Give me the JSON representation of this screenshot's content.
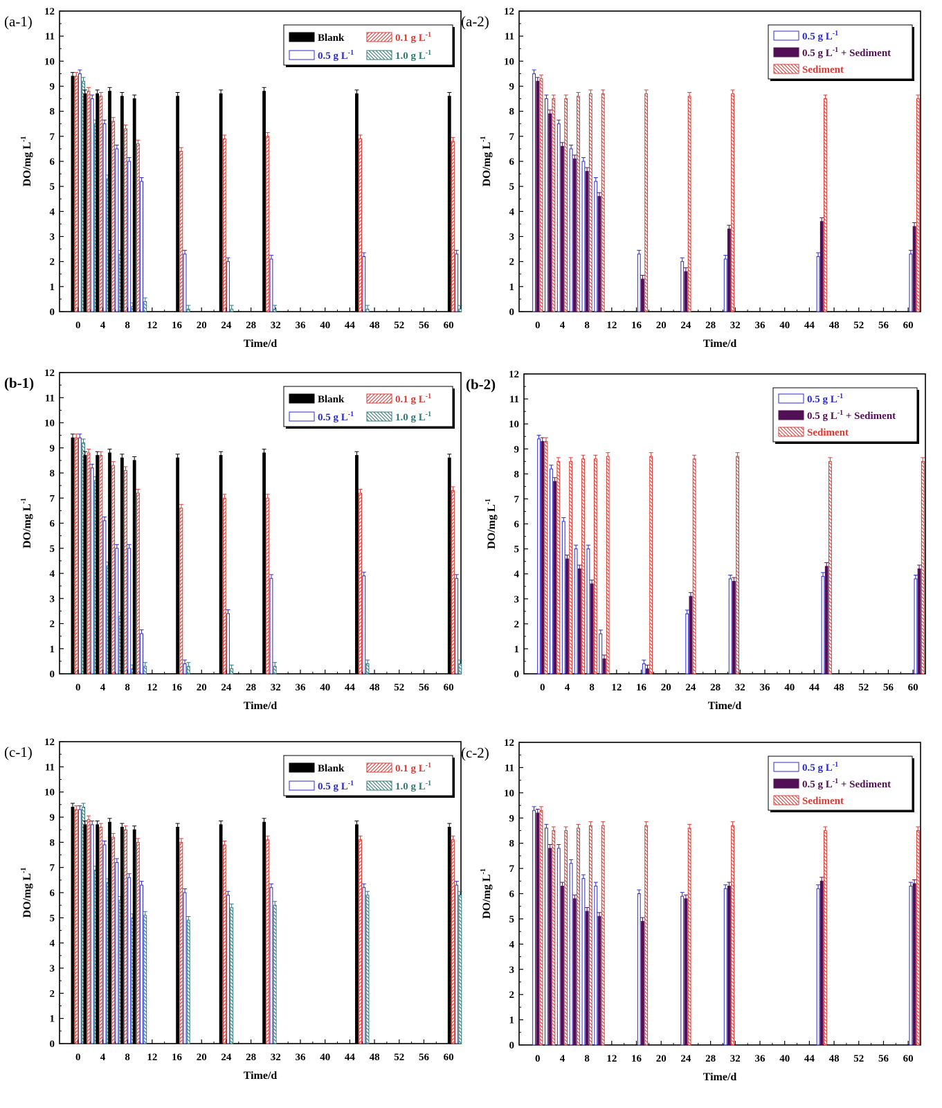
{
  "colors": {
    "blank": "#000000",
    "c01": "#d93a34",
    "c05": "#2a2ad4",
    "c10": "#2f7a76",
    "sed_combo": "#520f55",
    "sediment": "#d93a34"
  },
  "chart_data": [
    {
      "id": "a-1",
      "panel_label": "(a-1)",
      "type": "bar",
      "xlabel": "Time/d",
      "ylabel": "DO/mg L",
      "ylabel_sup": "-1",
      "ylim": [
        0,
        12
      ],
      "xlim": [
        -3,
        62
      ],
      "yticks": [
        "0",
        "1",
        "2",
        "3",
        "4",
        "5",
        "6",
        "7",
        "8",
        "9",
        "10",
        "11",
        "12"
      ],
      "xticks": [
        "0",
        "4",
        "8",
        "12",
        "16",
        "20",
        "24",
        "28",
        "32",
        "36",
        "40",
        "44",
        "48",
        "52",
        "56",
        "60"
      ],
      "legend_position": "top-right",
      "groups": [
        {
          "day": 0,
          "values": [
            9.4,
            9.4,
            9.5,
            9.2
          ]
        },
        {
          "day": 2,
          "values": [
            8.7,
            8.8,
            8.5,
            7.5
          ]
        },
        {
          "day": 4,
          "values": [
            8.7,
            8.6,
            7.5,
            5.3
          ]
        },
        {
          "day": 6,
          "values": [
            8.8,
            7.6,
            6.5,
            2.3
          ]
        },
        {
          "day": 8,
          "values": [
            8.6,
            7.3,
            6.0,
            0.2
          ]
        },
        {
          "day": 10,
          "values": [
            8.5,
            6.7,
            5.2,
            0.4
          ]
        },
        {
          "day": 17,
          "values": [
            8.6,
            6.4,
            2.3,
            0.1
          ]
        },
        {
          "day": 24,
          "values": [
            8.7,
            6.9,
            2.0,
            0.1
          ]
        },
        {
          "day": 31,
          "values": [
            8.8,
            7.0,
            2.1,
            0.1
          ]
        },
        {
          "day": 46,
          "values": [
            8.7,
            6.9,
            2.2,
            0.1
          ]
        },
        {
          "day": 61,
          "values": [
            8.6,
            6.8,
            2.3,
            0.1
          ]
        }
      ],
      "series": [
        {
          "name": "Blank",
          "unit": "",
          "color_key": "blank",
          "pattern": "solid"
        },
        {
          "name": "0.1 g L",
          "unit": "-1",
          "color_key": "c01",
          "pattern": "hatch-right"
        },
        {
          "name": "0.5 g L",
          "unit": "-1",
          "color_key": "c05",
          "pattern": "open"
        },
        {
          "name": "1.0 g L",
          "unit": "-1",
          "color_key": "c10",
          "pattern": "hatch-left"
        }
      ]
    },
    {
      "id": "a-2",
      "panel_label": "(a-2)",
      "type": "bar",
      "xlabel": "Time/d",
      "ylabel": "DO/mg L",
      "ylabel_sup": "-1",
      "ylim": [
        0,
        12
      ],
      "xlim": [
        -3,
        62
      ],
      "yticks": [
        "0",
        "1",
        "2",
        "3",
        "4",
        "5",
        "6",
        "7",
        "8",
        "9",
        "10",
        "11",
        "12"
      ],
      "xticks": [
        "0",
        "4",
        "8",
        "12",
        "16",
        "20",
        "24",
        "28",
        "32",
        "36",
        "40",
        "44",
        "48",
        "52",
        "56",
        "60"
      ],
      "legend_position": "top-right",
      "groups": [
        {
          "day": 0,
          "values": [
            9.5,
            9.2,
            9.3
          ]
        },
        {
          "day": 2,
          "values": [
            8.5,
            7.9,
            8.5
          ]
        },
        {
          "day": 4,
          "values": [
            7.5,
            6.6,
            8.5
          ]
        },
        {
          "day": 6,
          "values": [
            6.5,
            6.1,
            8.6
          ]
        },
        {
          "day": 8,
          "values": [
            6.0,
            5.6,
            8.7
          ]
        },
        {
          "day": 10,
          "values": [
            5.2,
            4.6,
            8.7
          ]
        },
        {
          "day": 17,
          "values": [
            2.3,
            1.3,
            8.7
          ]
        },
        {
          "day": 24,
          "values": [
            2.0,
            1.6,
            8.6
          ]
        },
        {
          "day": 31,
          "values": [
            2.1,
            3.3,
            8.7
          ]
        },
        {
          "day": 46,
          "values": [
            2.2,
            3.6,
            8.5
          ]
        },
        {
          "day": 61,
          "values": [
            2.3,
            3.4,
            8.5
          ]
        }
      ],
      "series": [
        {
          "name": "0.5 g L",
          "unit": "-1",
          "color_key": "c05",
          "pattern": "open"
        },
        {
          "name": "0.5 g L",
          "unit": "-1",
          "suffix": " + Sediment",
          "color_key": "sed_combo",
          "pattern": "solid"
        },
        {
          "name": "Sediment",
          "unit": "",
          "color_key": "sediment",
          "pattern": "hatch-left"
        }
      ]
    },
    {
      "id": "b-1",
      "panel_label": "(b-1)",
      "type": "bar",
      "xlabel": "Time/d",
      "ylabel": "DO/mg L",
      "ylabel_sup": "-1",
      "ylim": [
        0,
        12
      ],
      "xlim": [
        -3,
        62
      ],
      "yticks": [
        "0",
        "1",
        "2",
        "3",
        "4",
        "5",
        "6",
        "7",
        "8",
        "9",
        "10",
        "11",
        "12"
      ],
      "xticks": [
        "0",
        "4",
        "8",
        "12",
        "16",
        "20",
        "24",
        "28",
        "32",
        "36",
        "40",
        "44",
        "48",
        "52",
        "56",
        "60"
      ],
      "legend_position": "top-right",
      "groups": [
        {
          "day": 0,
          "values": [
            9.4,
            9.4,
            9.4,
            9.2
          ]
        },
        {
          "day": 2,
          "values": [
            8.7,
            8.8,
            8.2,
            7.7
          ]
        },
        {
          "day": 4,
          "values": [
            8.7,
            8.7,
            6.1,
            4.3
          ]
        },
        {
          "day": 6,
          "values": [
            8.8,
            8.3,
            5.0,
            2.3
          ]
        },
        {
          "day": 8,
          "values": [
            8.6,
            8.1,
            5.0,
            0.2
          ]
        },
        {
          "day": 10,
          "values": [
            8.5,
            7.2,
            1.6,
            0.3
          ]
        },
        {
          "day": 17,
          "values": [
            8.6,
            6.6,
            0.4,
            0.3
          ]
        },
        {
          "day": 24,
          "values": [
            8.7,
            7.0,
            2.4,
            0.2
          ]
        },
        {
          "day": 31,
          "values": [
            8.8,
            7.0,
            3.8,
            0.3
          ]
        },
        {
          "day": 46,
          "values": [
            8.7,
            7.2,
            3.9,
            0.4
          ]
        },
        {
          "day": 61,
          "values": [
            8.6,
            7.3,
            3.8,
            0.4
          ]
        }
      ],
      "series": [
        {
          "name": "Blank",
          "unit": "",
          "color_key": "blank",
          "pattern": "solid"
        },
        {
          "name": "0.1 g L",
          "unit": "-1",
          "color_key": "c01",
          "pattern": "hatch-right"
        },
        {
          "name": "0.5 g L",
          "unit": "-1",
          "color_key": "c05",
          "pattern": "open"
        },
        {
          "name": "1.0 g L",
          "unit": "-1",
          "color_key": "c10",
          "pattern": "hatch-left"
        }
      ]
    },
    {
      "id": "b-2",
      "panel_label": "(b-2)",
      "type": "bar",
      "xlabel": "Time/d",
      "ylabel": "DO/mg L",
      "ylabel_sup": "-1",
      "ylim": [
        0,
        12
      ],
      "xlim": [
        -3,
        62
      ],
      "yticks": [
        "0",
        "1",
        "2",
        "3",
        "4",
        "5",
        "6",
        "7",
        "8",
        "9",
        "10",
        "11",
        "12"
      ],
      "xticks": [
        "0",
        "4",
        "8",
        "12",
        "16",
        "20",
        "24",
        "28",
        "32",
        "36",
        "40",
        "44",
        "48",
        "52",
        "56",
        "60"
      ],
      "legend_position": "top-right",
      "groups": [
        {
          "day": 0,
          "values": [
            9.4,
            9.3,
            9.3
          ]
        },
        {
          "day": 2,
          "values": [
            8.2,
            7.7,
            8.5
          ]
        },
        {
          "day": 4,
          "values": [
            6.1,
            4.6,
            8.5
          ]
        },
        {
          "day": 6,
          "values": [
            5.0,
            4.2,
            8.6
          ]
        },
        {
          "day": 8,
          "values": [
            5.0,
            3.6,
            8.6
          ]
        },
        {
          "day": 10,
          "values": [
            1.6,
            0.6,
            8.7
          ]
        },
        {
          "day": 17,
          "values": [
            0.4,
            0.2,
            8.7
          ]
        },
        {
          "day": 24,
          "values": [
            2.4,
            3.1,
            8.6
          ]
        },
        {
          "day": 31,
          "values": [
            3.8,
            3.7,
            8.7
          ]
        },
        {
          "day": 46,
          "values": [
            3.9,
            4.3,
            8.5
          ]
        },
        {
          "day": 61,
          "values": [
            3.8,
            4.2,
            8.5
          ]
        }
      ],
      "series": [
        {
          "name": "0.5 g L",
          "unit": "-1",
          "color_key": "c05",
          "pattern": "open"
        },
        {
          "name": "0.5 g L",
          "unit": "-1",
          "suffix": " + Sediment",
          "color_key": "sed_combo",
          "pattern": "solid"
        },
        {
          "name": "Sediment",
          "unit": "",
          "color_key": "sediment",
          "pattern": "hatch-left"
        }
      ]
    },
    {
      "id": "c-1",
      "panel_label": "(c-1)",
      "type": "bar",
      "xlabel": "Time/d",
      "ylabel": "DO/mg L",
      "ylabel_sup": "-1",
      "ylim": [
        0,
        12
      ],
      "xlim": [
        -3,
        62
      ],
      "yticks": [
        "0",
        "1",
        "2",
        "3",
        "4",
        "5",
        "6",
        "7",
        "8",
        "9",
        "10",
        "11",
        "12"
      ],
      "xticks": [
        "0",
        "4",
        "8",
        "12",
        "16",
        "20",
        "24",
        "28",
        "32",
        "36",
        "40",
        "44",
        "48",
        "52",
        "56",
        "60"
      ],
      "legend_position": "top-right",
      "groups": [
        {
          "day": 0,
          "values": [
            9.4,
            9.3,
            9.3,
            9.4
          ]
        },
        {
          "day": 2,
          "values": [
            8.7,
            8.9,
            8.7,
            6.9
          ]
        },
        {
          "day": 4,
          "values": [
            8.7,
            8.6,
            7.9,
            6.4
          ]
        },
        {
          "day": 6,
          "values": [
            8.8,
            8.2,
            7.2,
            5.7
          ]
        },
        {
          "day": 8,
          "values": [
            8.6,
            8.5,
            6.6,
            5.0
          ]
        },
        {
          "day": 10,
          "values": [
            8.5,
            8.0,
            6.3,
            5.1
          ]
        },
        {
          "day": 17,
          "values": [
            8.6,
            8.0,
            6.0,
            4.9
          ]
        },
        {
          "day": 24,
          "values": [
            8.7,
            7.9,
            5.9,
            5.4
          ]
        },
        {
          "day": 31,
          "values": [
            8.8,
            8.1,
            6.2,
            5.5
          ]
        },
        {
          "day": 46,
          "values": [
            8.7,
            8.1,
            6.2,
            5.9
          ]
        },
        {
          "day": 61,
          "values": [
            8.6,
            8.1,
            6.3,
            5.9
          ]
        }
      ],
      "series": [
        {
          "name": "Blank",
          "unit": "",
          "color_key": "blank",
          "pattern": "solid"
        },
        {
          "name": "0.1 g L",
          "unit": "-1",
          "color_key": "c01",
          "pattern": "hatch-right"
        },
        {
          "name": "0.5 g L",
          "unit": "-1",
          "color_key": "c05",
          "pattern": "open"
        },
        {
          "name": "1.0 g L",
          "unit": "-1",
          "color_key": "c10",
          "pattern": "hatch-left"
        }
      ]
    },
    {
      "id": "c-2",
      "panel_label": "(c-2)",
      "type": "bar",
      "xlabel": "Time/d",
      "ylabel": "DO/mg L",
      "ylabel_sup": "-1",
      "ylim": [
        0,
        12
      ],
      "xlim": [
        -3,
        62
      ],
      "yticks": [
        "0",
        "1",
        "2",
        "3",
        "4",
        "5",
        "6",
        "7",
        "8",
        "9",
        "10",
        "11",
        "12"
      ],
      "xticks": [
        "0",
        "4",
        "8",
        "12",
        "16",
        "20",
        "24",
        "28",
        "32",
        "36",
        "40",
        "44",
        "48",
        "52",
        "56",
        "60"
      ],
      "legend_position": "top-right",
      "groups": [
        {
          "day": 0,
          "values": [
            9.3,
            9.2,
            9.3
          ]
        },
        {
          "day": 2,
          "values": [
            8.6,
            7.8,
            8.5
          ]
        },
        {
          "day": 4,
          "values": [
            7.8,
            6.3,
            8.5
          ]
        },
        {
          "day": 6,
          "values": [
            7.2,
            5.8,
            8.6
          ]
        },
        {
          "day": 8,
          "values": [
            6.6,
            5.3,
            8.7
          ]
        },
        {
          "day": 10,
          "values": [
            6.3,
            5.1,
            8.7
          ]
        },
        {
          "day": 17,
          "values": [
            6.0,
            4.9,
            8.7
          ]
        },
        {
          "day": 24,
          "values": [
            5.9,
            5.8,
            8.6
          ]
        },
        {
          "day": 31,
          "values": [
            6.2,
            6.3,
            8.7
          ]
        },
        {
          "day": 46,
          "values": [
            6.2,
            6.5,
            8.5
          ]
        },
        {
          "day": 61,
          "values": [
            6.3,
            6.4,
            8.5
          ]
        }
      ],
      "series": [
        {
          "name": "0.5 g L",
          "unit": "-1",
          "color_key": "c05",
          "pattern": "open"
        },
        {
          "name": "0.5 g L",
          "unit": "-1",
          "suffix": " + Sediment",
          "color_key": "sed_combo",
          "pattern": "solid"
        },
        {
          "name": "Sediment",
          "unit": "",
          "color_key": "sediment",
          "pattern": "hatch-left"
        }
      ]
    }
  ]
}
